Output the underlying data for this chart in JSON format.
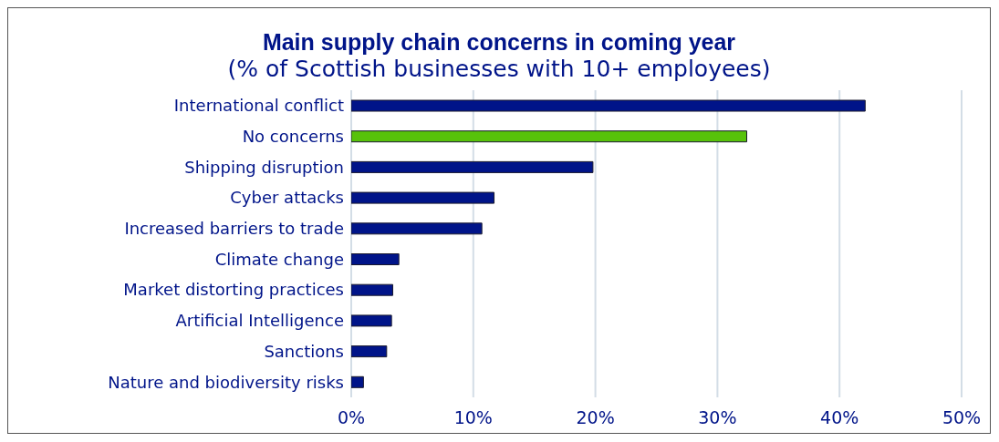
{
  "chart_data": {
    "type": "bar",
    "orientation": "horizontal",
    "title": "Main supply chain concerns in coming year",
    "subtitle": "(% of Scottish businesses with 10+ employees)",
    "categories": [
      "International conflict",
      "No concerns",
      "Shipping disruption",
      "Cyber attacks",
      "Increased barriers to trade",
      "Climate change",
      "Market distorting practices",
      "Artificial Intelligence",
      "Sanctions",
      "Nature and biodiversity risks"
    ],
    "values": [
      42.1,
      32.4,
      19.8,
      11.7,
      10.7,
      3.9,
      3.4,
      3.3,
      2.9,
      1.0
    ],
    "colors": [
      "#001489",
      "#57c20a",
      "#001489",
      "#001489",
      "#001489",
      "#001489",
      "#001489",
      "#001489",
      "#001489",
      "#001489"
    ],
    "xlim": [
      0,
      50
    ],
    "xticks": [
      {
        "value": 0,
        "label": "0%"
      },
      {
        "value": 10,
        "label": "10%"
      },
      {
        "value": 20,
        "label": "20%"
      },
      {
        "value": 30,
        "label": "30%"
      },
      {
        "value": 40,
        "label": "40%"
      },
      {
        "value": 50,
        "label": "50%"
      }
    ],
    "grid": "x"
  }
}
